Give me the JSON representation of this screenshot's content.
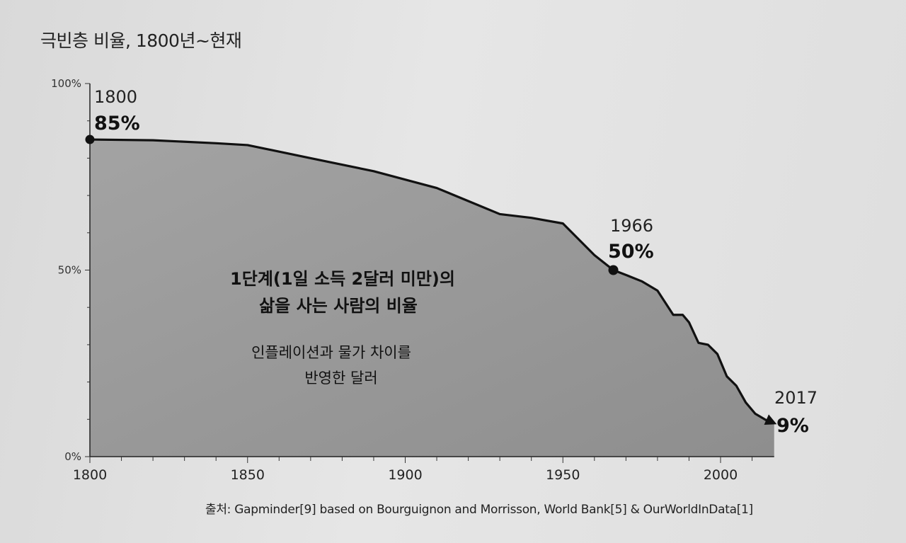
{
  "title": "극빈층 비율, 1800년~현재",
  "source": "출처: Gapminder[9] based on Bourguignon and Morrisson, World Bank[5] & OurWorldInData[1]",
  "chart_data": {
    "type": "area",
    "title": "극빈층 비율, 1800년~현재",
    "xlabel": "",
    "ylabel": "",
    "xlim": [
      1800,
      2017
    ],
    "ylim": [
      0,
      100
    ],
    "x_ticks": [
      "1800",
      "1850",
      "1900",
      "1950",
      "2000"
    ],
    "y_ticks": [
      "0%",
      "50%",
      "100%"
    ],
    "grid": false,
    "series": [
      {
        "x": [
          1800,
          1820,
          1840,
          1850,
          1870,
          1890,
          1910,
          1920,
          1930,
          1940,
          1950,
          1960,
          1966,
          1970,
          1975,
          1980,
          1985,
          1988,
          1990,
          1993,
          1996,
          1999,
          2002,
          2005,
          2008,
          2011,
          2013,
          2015,
          2017
        ],
        "y": [
          85,
          84.8,
          84,
          83.5,
          80,
          76.5,
          72,
          68.5,
          65,
          64,
          62.5,
          54,
          50,
          48.7,
          47,
          44.5,
          38,
          38,
          36,
          30.5,
          30,
          27.5,
          21.5,
          19,
          14.5,
          11.5,
          10.5,
          9.5,
          9
        ]
      }
    ],
    "annotations": [
      {
        "year": "1800",
        "value": "85%"
      },
      {
        "year": "1966",
        "value": "50%"
      },
      {
        "year": "2017",
        "value": "9%"
      }
    ],
    "area_label": {
      "line1": "1단계(1일 소득 2달러 미만)의",
      "line2": "삶을 사는 사람의 비율",
      "line3": "인플레이션과 물가 차이를",
      "line4": "반영한 달러"
    },
    "colors": {
      "area": "#9a9a9a",
      "line": "#111111"
    }
  }
}
